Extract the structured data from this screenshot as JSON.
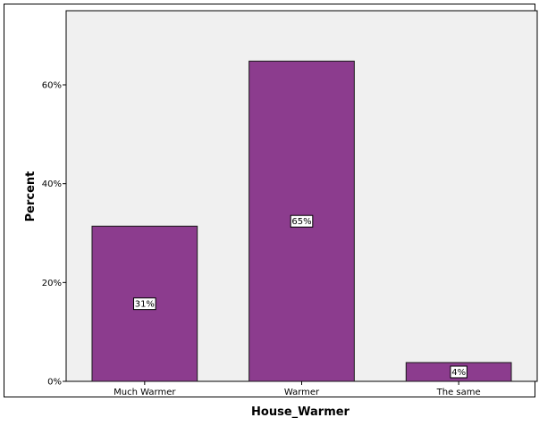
{
  "chart_data": {
    "type": "bar",
    "title": "",
    "xlabel": "House_Warmer",
    "ylabel": "Percent",
    "categories": [
      "Much Warmer",
      "Warmer",
      "The same"
    ],
    "values": [
      31.4,
      64.8,
      3.8
    ],
    "data_labels": [
      "31%",
      "65%",
      "4%"
    ],
    "ylim": [
      0,
      75
    ],
    "yticks": [
      0,
      20,
      40,
      60
    ],
    "ytick_labels": [
      "0%",
      "20%",
      "40%",
      "60%"
    ],
    "grid": false,
    "legend": "none",
    "colors": {
      "bar": "#8c3c8e",
      "bar_edge": "#1a1a1a",
      "plot_background": "#f0f0f0",
      "frame": "#000000"
    }
  }
}
